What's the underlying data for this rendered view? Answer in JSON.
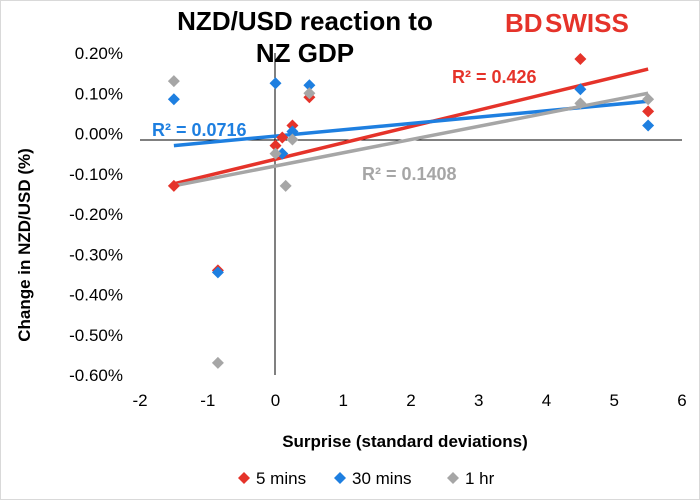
{
  "brand": {
    "logo_left": "BD",
    "logo_right": "SWISS",
    "logo_color": "#e5332a"
  },
  "chart_data": {
    "type": "scatter",
    "title_lines": [
      "NZD/USD reaction to",
      "NZ GDP"
    ],
    "xlabel": "Surprise (standard deviations)",
    "ylabel": "Change in NZD/USD  (%)",
    "xlim": [
      -2,
      6
    ],
    "ylim": [
      -0.6,
      0.2
    ],
    "x_ticks": [
      -2,
      -1,
      0,
      1,
      2,
      3,
      4,
      5,
      6
    ],
    "x_tick_labels": [
      "-2",
      "-1",
      "0",
      "1",
      "2",
      "3",
      "4",
      "5",
      "6"
    ],
    "y_ticks": [
      0.2,
      0.1,
      0.0,
      -0.1,
      -0.2,
      -0.3,
      -0.4,
      -0.5,
      -0.6
    ],
    "y_tick_labels": [
      "0.20%",
      "0.10%",
      "0.00%",
      "-0.10%",
      "-0.20%",
      "-0.30%",
      "-0.40%",
      "-0.50%",
      "-0.60%"
    ],
    "grid": false,
    "legend_position": "bottom",
    "series": [
      {
        "name": "5 mins",
        "color": "#e5332a",
        "points": [
          [
            -1.5,
            -0.13
          ],
          [
            -0.85,
            -0.34
          ],
          [
            0.0,
            -0.03
          ],
          [
            0.1,
            -0.01
          ],
          [
            0.25,
            0.02
          ],
          [
            0.5,
            0.09
          ],
          [
            4.5,
            0.185
          ],
          [
            5.5,
            0.055
          ]
        ],
        "trend": {
          "x": [
            -1.5,
            5.5
          ],
          "y": [
            -0.125,
            0.16
          ],
          "label": "R² = 0.426"
        }
      },
      {
        "name": "30 mins",
        "color": "#1e7fe0",
        "points": [
          [
            -1.5,
            0.085
          ],
          [
            -0.85,
            -0.345
          ],
          [
            0.0,
            0.125
          ],
          [
            0.1,
            -0.05
          ],
          [
            0.25,
            0.005
          ],
          [
            0.5,
            0.12
          ],
          [
            4.5,
            0.11
          ],
          [
            5.5,
            0.02
          ]
        ],
        "trend": {
          "x": [
            -1.5,
            5.5
          ],
          "y": [
            -0.03,
            0.08
          ],
          "label": "R² = 0.0716"
        }
      },
      {
        "name": "1 hr",
        "color": "#a6a6a6",
        "points": [
          [
            -1.5,
            0.13
          ],
          [
            -0.85,
            -0.57
          ],
          [
            0.0,
            -0.05
          ],
          [
            0.15,
            -0.13
          ],
          [
            0.25,
            -0.015
          ],
          [
            0.5,
            0.1
          ],
          [
            4.5,
            0.075
          ],
          [
            5.5,
            0.085
          ]
        ],
        "trend": {
          "x": [
            -1.5,
            5.5
          ],
          "y": [
            -0.13,
            0.1
          ],
          "label": "R² = 0.1408"
        }
      }
    ]
  }
}
